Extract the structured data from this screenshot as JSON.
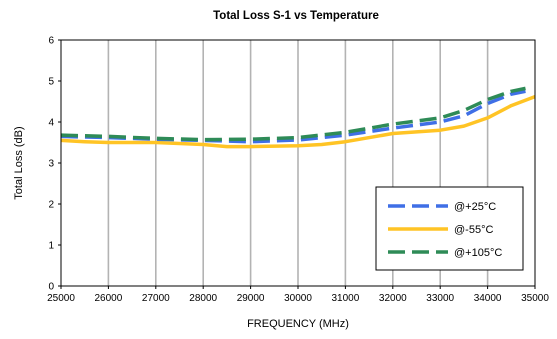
{
  "chart_data": {
    "type": "line",
    "title": "Total Loss S-1 vs Temperature",
    "xlabel": "FREQUENCY (MHz)",
    "ylabel": "Total Loss (dB)",
    "xlim": [
      25000,
      35000
    ],
    "ylim": [
      0,
      6
    ],
    "xticks": [
      25000,
      26000,
      27000,
      28000,
      29000,
      30000,
      31000,
      32000,
      33000,
      34000,
      35000
    ],
    "yticks": [
      0,
      1,
      2,
      3,
      4,
      5,
      6
    ],
    "grid": {
      "vertical": true,
      "horizontal": false
    },
    "legend_position": "bottom-right",
    "series": [
      {
        "name": "@+25°C",
        "color": "#3f6fe6",
        "dash": "long-dash",
        "x": [
          25000,
          26000,
          27000,
          28000,
          29000,
          30000,
          31000,
          32000,
          33000,
          33500,
          34000,
          34500,
          34800
        ],
        "y": [
          3.65,
          3.62,
          3.58,
          3.55,
          3.52,
          3.56,
          3.68,
          3.85,
          4.0,
          4.15,
          4.45,
          4.68,
          4.75
        ]
      },
      {
        "name": "@-55°C",
        "color": "#ffc425",
        "dash": "solid",
        "x": [
          25000,
          25500,
          26000,
          27000,
          28000,
          28500,
          29000,
          30000,
          30500,
          31000,
          32000,
          33000,
          33500,
          34000,
          34500,
          35000
        ],
        "y": [
          3.55,
          3.52,
          3.5,
          3.5,
          3.45,
          3.4,
          3.4,
          3.42,
          3.45,
          3.52,
          3.72,
          3.8,
          3.9,
          4.1,
          4.4,
          4.62
        ]
      },
      {
        "name": "@+105°C",
        "color": "#2e8b57",
        "dash": "long-dash",
        "x": [
          25000,
          26000,
          27000,
          28000,
          29000,
          30000,
          31000,
          32000,
          33000,
          33500,
          34000,
          34500,
          34800
        ],
        "y": [
          3.68,
          3.65,
          3.6,
          3.57,
          3.58,
          3.62,
          3.75,
          3.95,
          4.1,
          4.28,
          4.55,
          4.75,
          4.82
        ]
      }
    ]
  }
}
